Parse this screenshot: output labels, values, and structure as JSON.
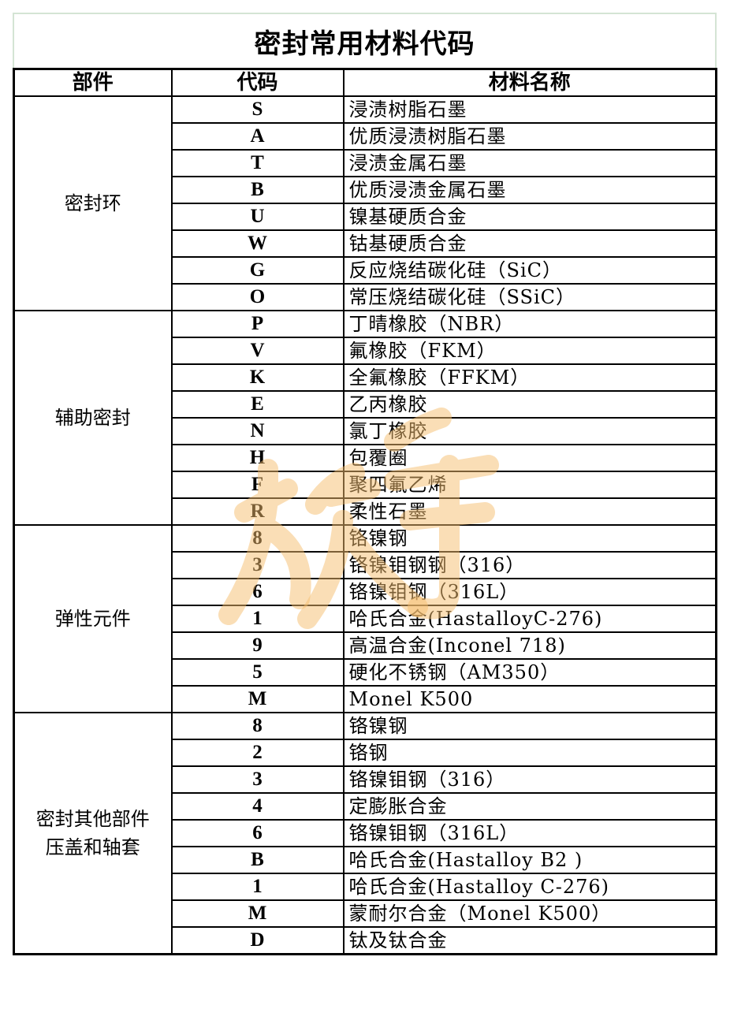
{
  "title": "密封常用材料代码",
  "headers": {
    "part": "部件",
    "code": "代码",
    "name": "材料名称"
  },
  "watermark": "旅行",
  "groups": [
    {
      "part": "密封环",
      "rows": [
        {
          "code": "S",
          "name": "浸渍树脂石墨"
        },
        {
          "code": "A",
          "name": "优质浸渍树脂石墨"
        },
        {
          "code": "T",
          "name": "浸渍金属石墨"
        },
        {
          "code": "B",
          "name": "优质浸渍金属石墨"
        },
        {
          "code": "U",
          "name": "镍基硬质合金"
        },
        {
          "code": "W",
          "name": "钴基硬质合金"
        },
        {
          "code": "G",
          "name": "反应烧结碳化硅（SiC）"
        },
        {
          "code": "O",
          "name": "常压烧结碳化硅（SSiC）"
        }
      ]
    },
    {
      "part": "辅助密封",
      "rows": [
        {
          "code": "P",
          "name": "丁晴橡胶（NBR）"
        },
        {
          "code": "V",
          "name": "氟橡胶（FKM）"
        },
        {
          "code": "K",
          "name": "全氟橡胶（FFKM）"
        },
        {
          "code": "E",
          "name": "乙丙橡胶"
        },
        {
          "code": "N",
          "name": "氯丁橡胶"
        },
        {
          "code": "H",
          "name": "包覆圈"
        },
        {
          "code": "F",
          "name": "聚四氟乙烯"
        },
        {
          "code": "R",
          "name": "柔性石墨"
        }
      ]
    },
    {
      "part": "弹性元件",
      "rows": [
        {
          "code": "8",
          "name": "铬镍钢"
        },
        {
          "code": "3",
          "name": "铬镍钼钢钢（316）"
        },
        {
          "code": "6",
          "name": "铬镍钼钢（316L）"
        },
        {
          "code": "1",
          "name": "哈氏合金(HastalloyC-276)"
        },
        {
          "code": "9",
          "name": "高温合金(Inconel 718)"
        },
        {
          "code": "5",
          "name": "硬化不锈钢（AM350）"
        },
        {
          "code": "M",
          "name": "Monel K500"
        }
      ]
    },
    {
      "part": "密封其他部件\n压盖和轴套",
      "rows": [
        {
          "code": "8",
          "name": "铬镍钢"
        },
        {
          "code": "2",
          "name": "铬钢"
        },
        {
          "code": "3",
          "name": "铬镍钼钢（316）"
        },
        {
          "code": "4",
          "name": "定膨胀合金"
        },
        {
          "code": "6",
          "name": "铬镍钼钢（316L）"
        },
        {
          "code": "B",
          "name": "哈氏合金(Hastalloy B2 )"
        },
        {
          "code": "1",
          "name": "哈氏合金(Hastalloy C-276)"
        },
        {
          "code": "M",
          "name": "蒙耐尔合金（Monel K500）"
        },
        {
          "code": "D",
          "name": "钛及钛合金"
        }
      ]
    }
  ]
}
